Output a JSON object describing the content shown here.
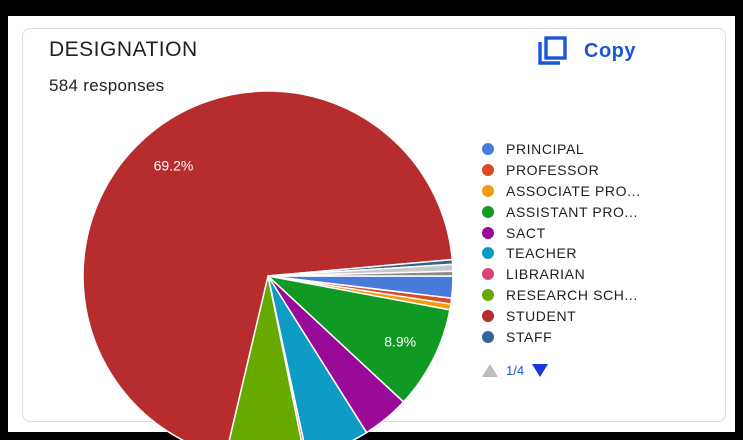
{
  "card": {
    "title": "DESIGNATION",
    "responses": "584 responses",
    "copy_label": "Copy",
    "copy_icon": "copy-icon"
  },
  "chart_data": {
    "type": "pie",
    "title": "DESIGNATION",
    "slices": [
      {
        "label": "PRINCIPAL",
        "value": 1.9,
        "color": "#4a7bdc"
      },
      {
        "label": "PROFESSOR",
        "value": 0.5,
        "color": "#dc4a26"
      },
      {
        "label": "ASSOCIATE PRO...",
        "value": 0.5,
        "color": "#f29b0b"
      },
      {
        "label": "ASSISTANT PRO...",
        "value": 8.9,
        "color": "#119a23"
      },
      {
        "label": "SACT",
        "value": 4.1,
        "color": "#990a99"
      },
      {
        "label": "TEACHER",
        "value": 5.5,
        "color": "#0e9cc7"
      },
      {
        "label": "LIBRARIAN",
        "value": 0.2,
        "color": "#dc4477"
      },
      {
        "label": "RESEARCH SCH...",
        "value": 6.8,
        "color": "#66aa00"
      },
      {
        "label": "STUDENT",
        "value": 69.2,
        "color": "#b72c2c"
      },
      {
        "label": "STAFF",
        "value": 0.4,
        "color": "#316395"
      },
      {
        "label": "",
        "value": 0.6,
        "color": "#c8c8c8"
      },
      {
        "label": "",
        "value": 0.4,
        "color": "#8a8a8a"
      }
    ],
    "data_labels": [
      "69.2%",
      "8.9%"
    ],
    "legend_position": "right"
  },
  "legend_pager": {
    "text": "1/4",
    "prev_icon": "triangle-up-icon",
    "next_icon": "triangle-down-icon"
  }
}
